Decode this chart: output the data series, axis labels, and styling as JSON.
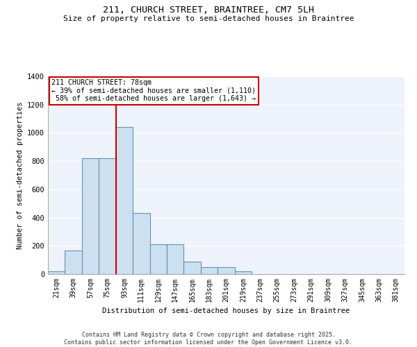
{
  "title_line1": "211, CHURCH STREET, BRAINTREE, CM7 5LH",
  "title_line2": "Size of property relative to semi-detached houses in Braintree",
  "xlabel": "Distribution of semi-detached houses by size in Braintree",
  "ylabel": "Number of semi-detached properties",
  "categories": [
    "21sqm",
    "39sqm",
    "57sqm",
    "75sqm",
    "93sqm",
    "111sqm",
    "129sqm",
    "147sqm",
    "165sqm",
    "183sqm",
    "201sqm",
    "219sqm",
    "237sqm",
    "255sqm",
    "273sqm",
    "291sqm",
    "309sqm",
    "327sqm",
    "345sqm",
    "363sqm",
    "381sqm"
  ],
  "values": [
    20,
    165,
    820,
    820,
    1040,
    430,
    210,
    210,
    90,
    50,
    50,
    20,
    0,
    0,
    0,
    0,
    0,
    0,
    0,
    0,
    0
  ],
  "bar_color": "#cce0f0",
  "bar_edge_color": "#6090b8",
  "background_color": "#eef2fa",
  "grid_color": "#ffffff",
  "property_label": "211 CHURCH STREET: 78sqm",
  "pct_smaller": 39,
  "count_smaller": 1110,
  "pct_larger": 58,
  "count_larger": 1643,
  "vline_color": "#cc0000",
  "vline_x": 4,
  "annotation_box_fc": "#ffffff",
  "annotation_box_ec": "#cc0000",
  "ylim": [
    0,
    1400
  ],
  "yticks": [
    0,
    200,
    400,
    600,
    800,
    1000,
    1200,
    1400
  ],
  "footer_line1": "Contains HM Land Registry data © Crown copyright and database right 2025.",
  "footer_line2": "Contains public sector information licensed under the Open Government Licence v3.0."
}
